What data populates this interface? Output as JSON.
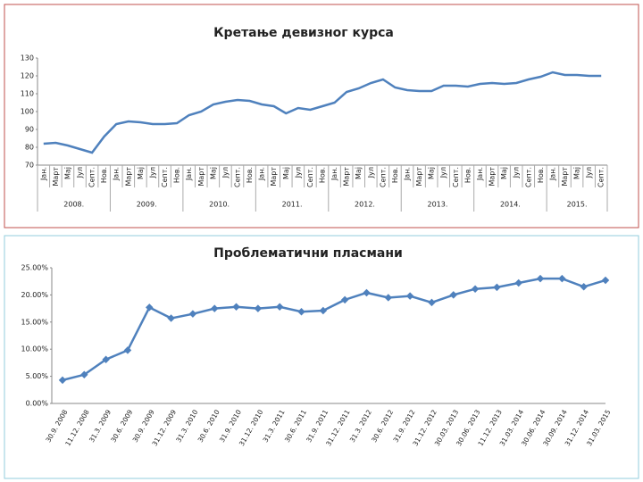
{
  "chart_data": [
    {
      "type": "line",
      "title": "Кретање девизног курса",
      "color": "#4f81bd",
      "categories": [
        "Јан.",
        "Март",
        "Мај",
        "Јул",
        "Септ.",
        "Нов.",
        "Јан.",
        "Март",
        "Мај",
        "Јул",
        "Септ.",
        "Нов.",
        "Јан.",
        "Март",
        "Мај",
        "Јул",
        "Септ.",
        "Нов.",
        "Јан.",
        "Март",
        "Мај",
        "Јул",
        "Септ.",
        "Нов.",
        "Јан.",
        "Март",
        "Мај",
        "Јул",
        "Септ.",
        "Нов.",
        "Јан.",
        "Март",
        "Мај",
        "Јул",
        "Септ.",
        "Нов.",
        "Јан.",
        "Март",
        "Мај",
        "Јул",
        "Септ.",
        "Нов.",
        "Јан.",
        "Март",
        "Мај",
        "Јул",
        "Септ."
      ],
      "values": [
        82,
        82.5,
        81,
        79,
        77,
        86,
        93,
        94.5,
        94,
        93,
        93,
        93.5,
        98,
        100,
        104,
        105.5,
        106.5,
        106,
        104,
        103,
        99,
        102,
        101,
        103,
        105,
        111,
        113,
        116,
        118,
        113.5,
        112,
        111.5,
        111.5,
        114.5,
        114.5,
        114,
        115.5,
        116,
        115.5,
        116,
        118,
        119.5,
        122,
        120.5,
        120.5,
        120,
        120
      ],
      "years": [
        "2008.",
        "2009.",
        "2010.",
        "2011.",
        "2012.",
        "2013.",
        "2014.",
        "2015."
      ],
      "ylim": [
        70,
        130
      ],
      "yticks": [
        70,
        80,
        90,
        100,
        110,
        120,
        130
      ]
    },
    {
      "type": "line",
      "title": "Проблематични пласмани",
      "color": "#4f81bd",
      "markers": true,
      "categories": [
        "30.9. 2008",
        "11.12. 2008",
        "31.3. 2009",
        "30.6. 2009",
        "30.9. 2009",
        "31.12. 2009",
        "31.3. 2010",
        "30.6. 2010",
        "31.9. 2010",
        "31.12. 2010",
        "31.3. 2011",
        "30.6. 2011",
        "31.9. 2011",
        "31.12. 2011",
        "31.3. 2012",
        "30.6. 2012",
        "31.9. 2012",
        "31.12. 2012",
        "30.03. 2013",
        "30.06. 2013",
        "11.12. 2013",
        "31.03. 2014",
        "30.06. 2014",
        "30.09. 2014",
        "31.12. 2014",
        "31.03. 2015"
      ],
      "values": [
        4.3,
        5.3,
        8.1,
        9.8,
        17.7,
        15.7,
        16.5,
        17.5,
        17.8,
        17.5,
        17.8,
        16.9,
        17.1,
        19.1,
        20.4,
        19.5,
        19.8,
        18.6,
        20,
        21.1,
        21.4,
        22.2,
        23,
        23,
        21.5,
        22.7
      ],
      "ylim": [
        0,
        25
      ],
      "yticks": [
        {
          "value": 0,
          "label": "0.00%"
        },
        {
          "value": 5,
          "label": "5.00%"
        },
        {
          "value": 10,
          "label": "10.00%"
        },
        {
          "value": 15,
          "label": "15.00%"
        },
        {
          "value": 20,
          "label": "20.00%"
        },
        {
          "value": 25,
          "label": "25.00%"
        }
      ]
    }
  ]
}
